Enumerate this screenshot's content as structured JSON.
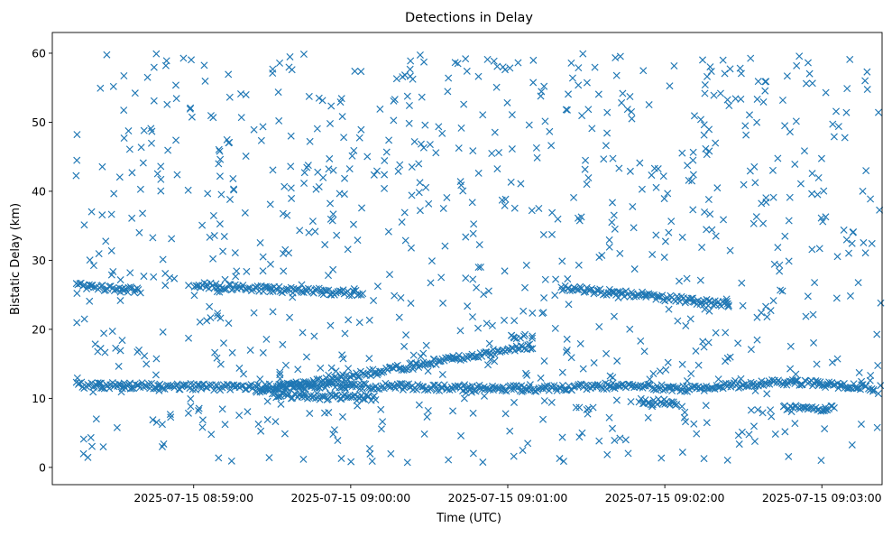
{
  "chart_data": {
    "type": "scatter",
    "title": "Detections in Delay",
    "xlabel": "Time (UTC)",
    "ylabel": "Bistatic Delay (km)",
    "x_unit": "time (HH:MM:SS UTC, 2025-07-15)",
    "xlim": [
      "08:58:06",
      "09:03:23"
    ],
    "ylim": [
      -2.5,
      63
    ],
    "x_ticks": [
      "2025-07-15 08:59:00",
      "2025-07-15 09:00:00",
      "2025-07-15 09:01:00",
      "2025-07-15 09:02:00",
      "2025-07-15 09:03:00"
    ],
    "y_ticks": [
      "0",
      "10",
      "20",
      "30",
      "40",
      "50",
      "60"
    ],
    "marker": "x",
    "color": "#1f77b4",
    "grid": false,
    "legend": "none",
    "tracks": [
      {
        "points": [
          [
            "08:58:15",
            11.9
          ],
          [
            "08:58:40",
            11.8
          ],
          [
            "08:59:15",
            11.6
          ],
          [
            "08:59:55",
            11.9
          ],
          [
            "09:00:40",
            11.5
          ],
          [
            "09:01:10",
            11.4
          ],
          [
            "09:01:40",
            11.8
          ],
          [
            "09:02:10",
            11.4
          ],
          [
            "09:02:45",
            12.4
          ],
          [
            "09:03:20",
            11.6
          ]
        ]
      },
      {
        "points": [
          [
            "08:58:15",
            26.3
          ],
          [
            "08:58:40",
            25.6
          ]
        ]
      },
      {
        "points": [
          [
            "08:59:00",
            26.4
          ],
          [
            "08:59:30",
            25.8
          ],
          [
            "09:00:05",
            25.2
          ]
        ]
      },
      {
        "points": [
          [
            "08:59:25",
            11.2
          ],
          [
            "09:00:00",
            13.2
          ],
          [
            "09:00:40",
            15.8
          ],
          [
            "09:01:10",
            17.6
          ]
        ]
      },
      {
        "points": [
          [
            "09:01:05",
            19.0
          ]
        ]
      },
      {
        "points": [
          [
            "08:59:30",
            10.5
          ],
          [
            "09:00:10",
            10.0
          ]
        ]
      },
      {
        "points": [
          [
            "09:01:50",
            9.6
          ],
          [
            "09:02:05",
            9.3
          ]
        ]
      },
      {
        "points": [
          [
            "09:01:20",
            26.0
          ],
          [
            "09:01:50",
            25.0
          ],
          [
            "09:02:25",
            23.5
          ]
        ]
      },
      {
        "points": [
          [
            "09:02:45",
            8.5
          ],
          [
            "09:03:05",
            8.6
          ]
        ]
      }
    ],
    "noise": {
      "x_range": [
        "08:58:15",
        "09:03:23"
      ],
      "y_range": [
        0.5,
        60
      ]
    }
  }
}
